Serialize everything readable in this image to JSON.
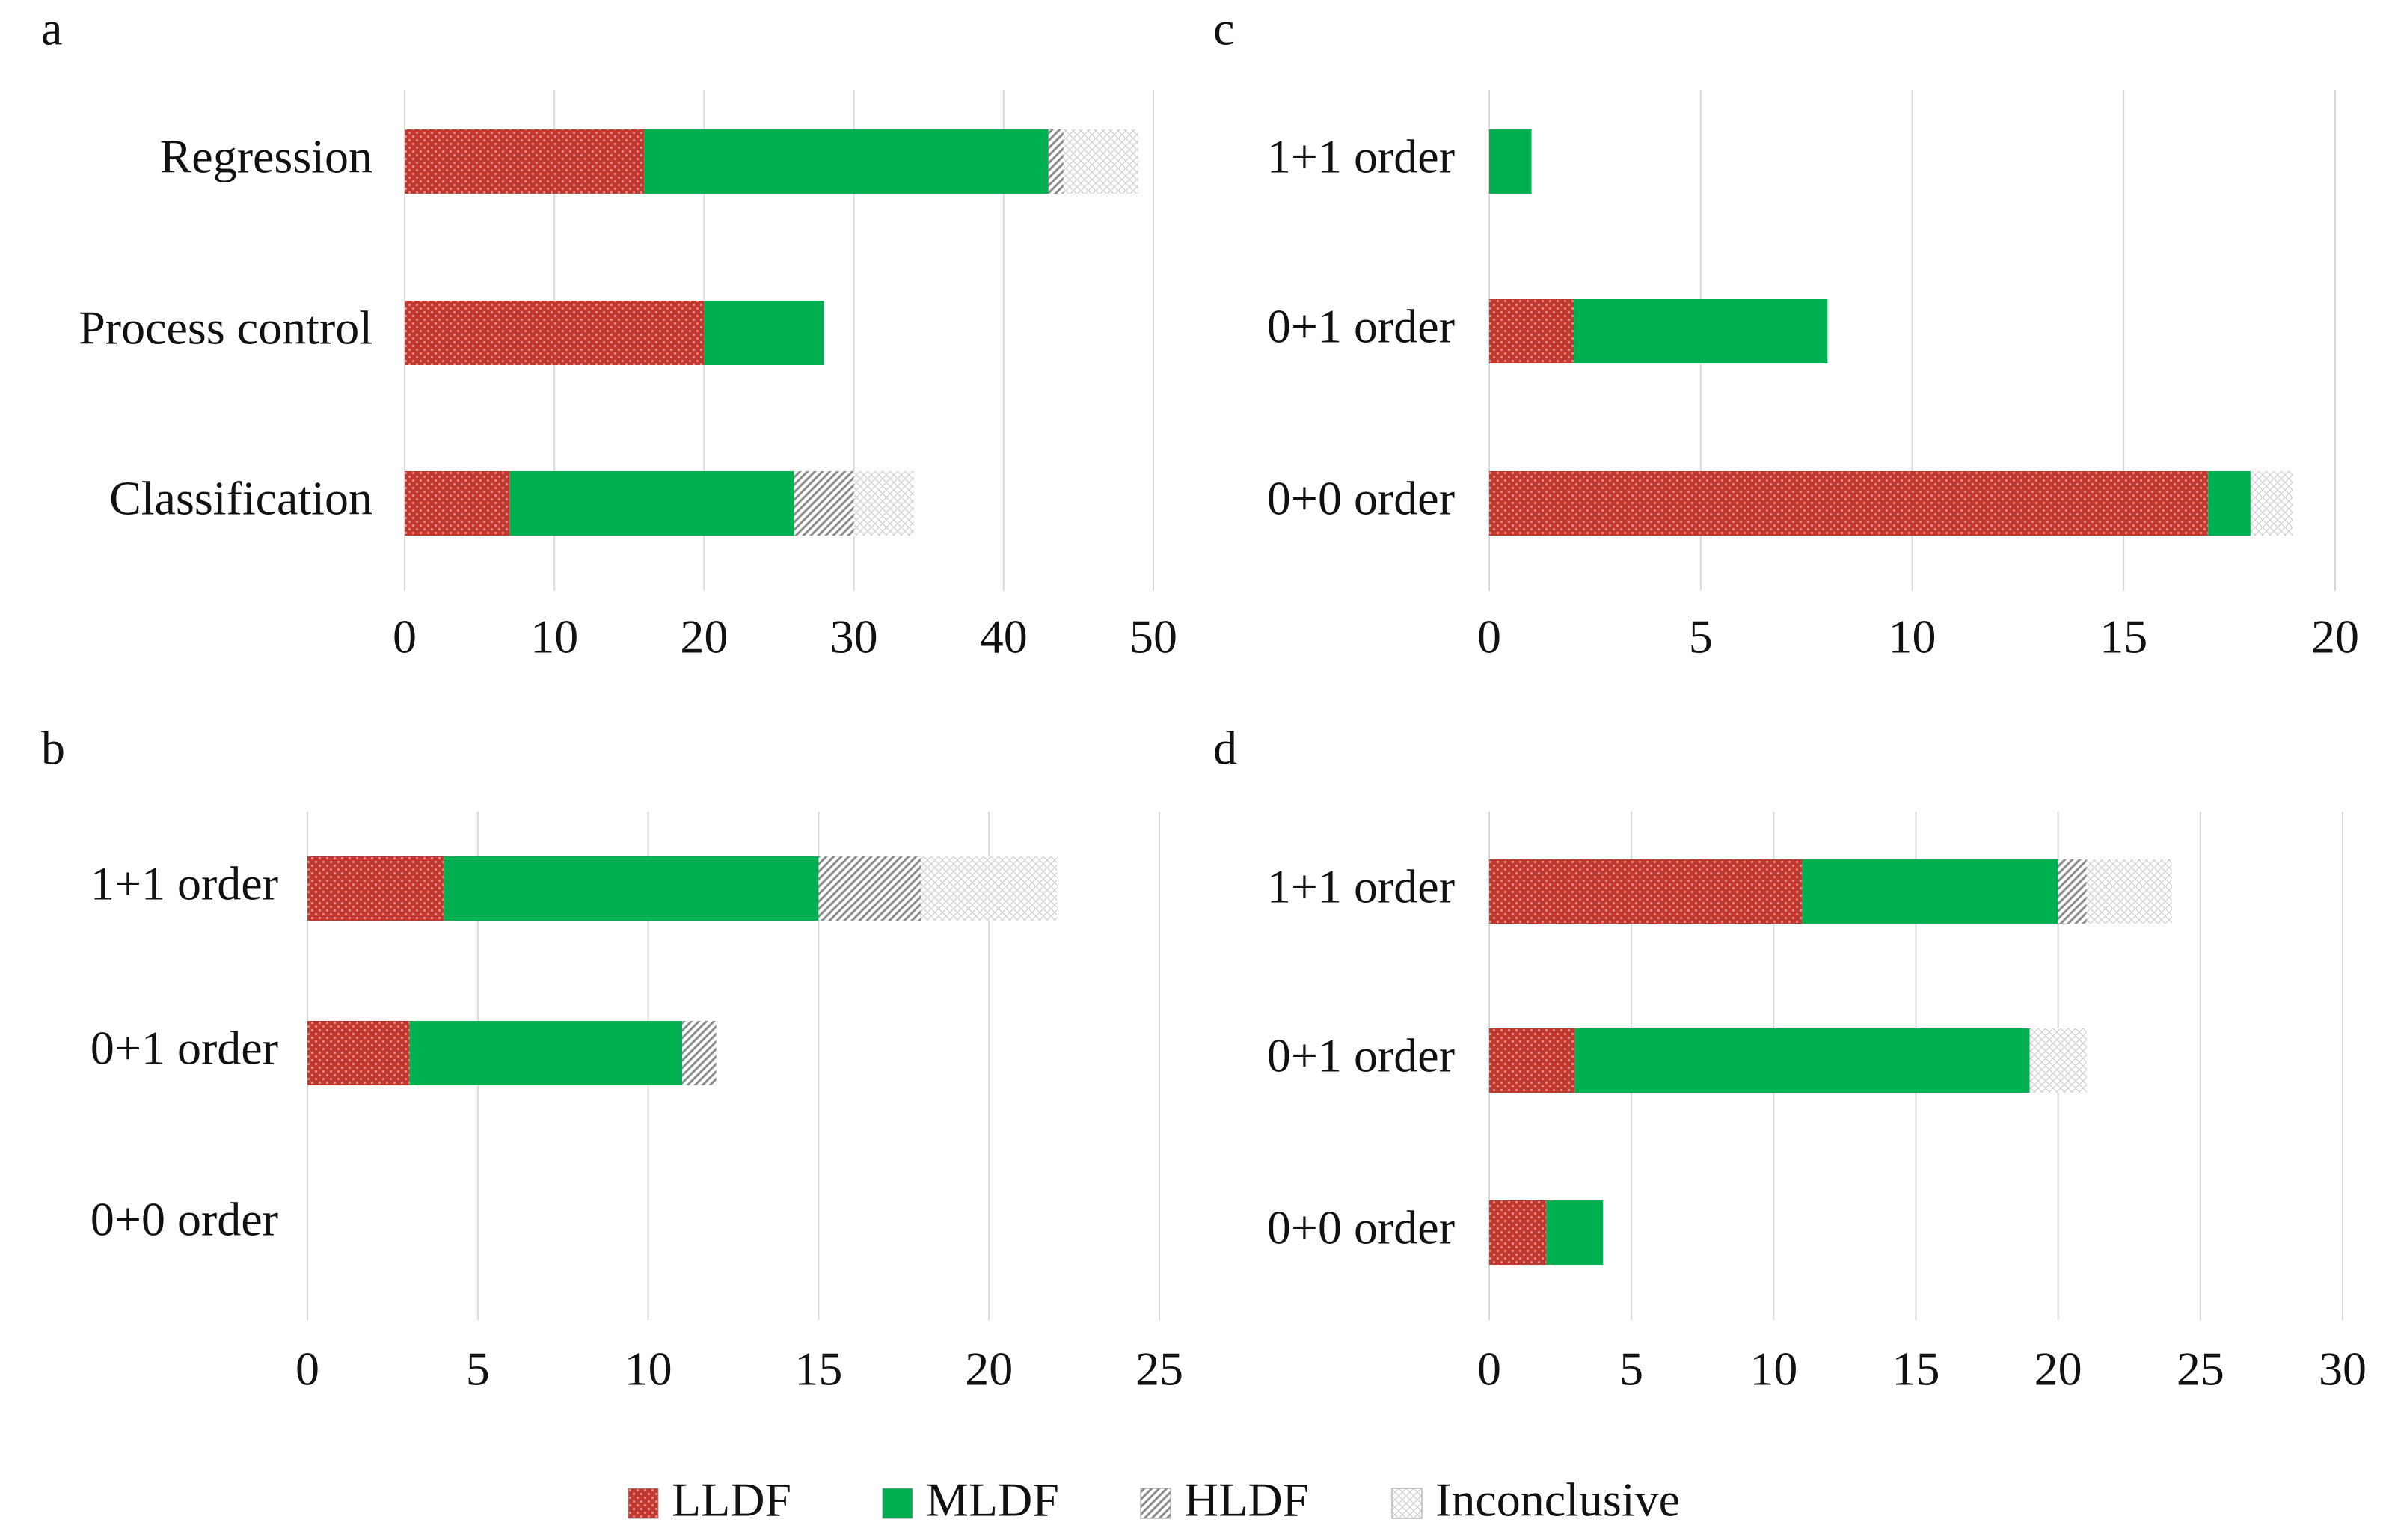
{
  "legend": [
    {
      "name": "LLDF",
      "color": "#c0392f",
      "pattern": "dots"
    },
    {
      "name": "MLDF",
      "color": "#00b050",
      "pattern": "solid"
    },
    {
      "name": "HLDF",
      "color": "#8c8c8c",
      "pattern": "diagonal"
    },
    {
      "name": "Inconclusive",
      "color": "#cfcfcf",
      "pattern": "crosshatch"
    }
  ],
  "chart_data": [
    {
      "type": "bar",
      "orientation": "horizontal",
      "stacked": true,
      "label": "a",
      "categories": [
        "Regression",
        "Process control",
        "Classification"
      ],
      "series": [
        {
          "values": [
            16,
            20,
            7
          ]
        },
        {
          "values": [
            27,
            8,
            19
          ]
        },
        {
          "values": [
            1,
            0,
            4
          ]
        },
        {
          "values": [
            5,
            0,
            4
          ]
        }
      ],
      "xlim": [
        0,
        50
      ],
      "xticks": [
        0,
        10,
        20,
        30,
        40,
        50
      ],
      "grid": true
    },
    {
      "type": "bar",
      "orientation": "horizontal",
      "stacked": true,
      "label": "b",
      "categories": [
        "1+1 order",
        "0+1 order",
        "0+0 order"
      ],
      "series": [
        {
          "values": [
            4,
            3,
            0
          ]
        },
        {
          "values": [
            11,
            8,
            0
          ]
        },
        {
          "values": [
            3,
            1,
            0
          ]
        },
        {
          "values": [
            4,
            0,
            0
          ]
        }
      ],
      "xlim": [
        0,
        25
      ],
      "xticks": [
        0,
        5,
        10,
        15,
        20,
        25
      ],
      "grid": true
    },
    {
      "type": "bar",
      "orientation": "horizontal",
      "stacked": true,
      "label": "c",
      "categories": [
        "1+1 order",
        "0+1 order",
        "0+0 order"
      ],
      "series": [
        {
          "values": [
            0,
            2,
            17
          ]
        },
        {
          "values": [
            1,
            6,
            1
          ]
        },
        {
          "values": [
            0,
            0,
            0
          ]
        },
        {
          "values": [
            0,
            0,
            1
          ]
        }
      ],
      "xlim": [
        0,
        20
      ],
      "xticks": [
        0,
        5,
        10,
        15,
        20
      ],
      "grid": true
    },
    {
      "type": "bar",
      "orientation": "horizontal",
      "stacked": true,
      "label": "d",
      "categories": [
        "1+1 order",
        "0+1 order",
        "0+0 order"
      ],
      "series": [
        {
          "values": [
            11,
            3,
            2
          ]
        },
        {
          "values": [
            9,
            16,
            2
          ]
        },
        {
          "values": [
            1,
            0,
            0
          ]
        },
        {
          "values": [
            3,
            2,
            0
          ]
        }
      ],
      "xlim": [
        0,
        30
      ],
      "xticks": [
        0,
        5,
        10,
        15,
        20,
        25,
        30
      ],
      "grid": true
    }
  ]
}
